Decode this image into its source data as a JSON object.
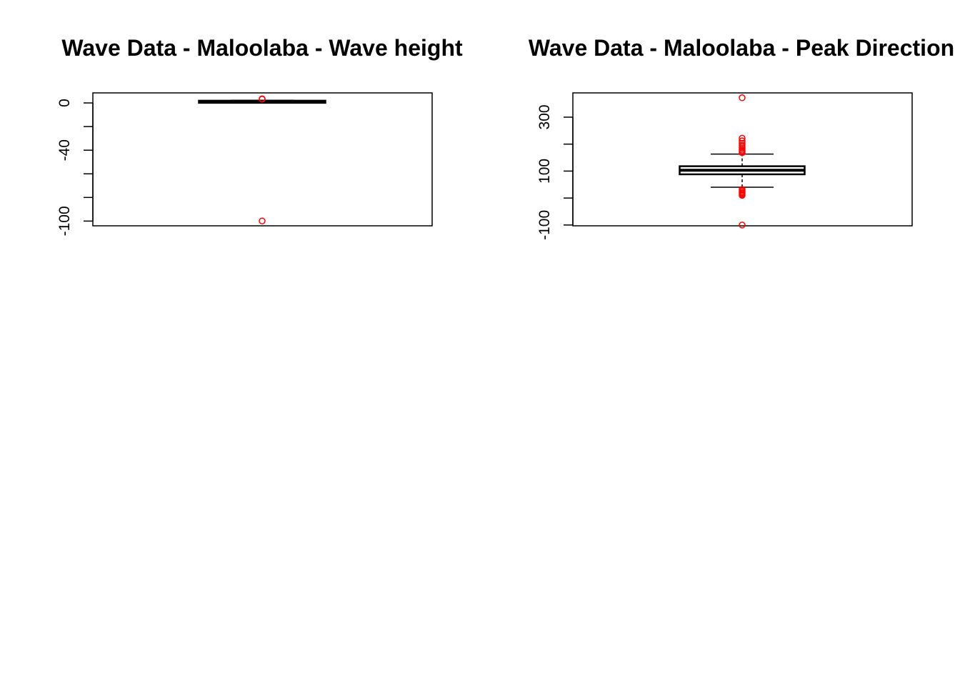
{
  "colors": {
    "outlier": "#ff0000",
    "axis": "#000000",
    "background": "#ffffff"
  },
  "chart_data": [
    {
      "type": "boxplot",
      "title": "Wave Data - Maloolaba - Wave height",
      "xlabel": "",
      "ylabel": "",
      "ylim": [
        -104,
        8.5
      ],
      "yticks": [
        0,
        -20,
        -40,
        -60,
        -80,
        -100
      ],
      "ytick_labels": [
        "0",
        "",
        "-40",
        "",
        "",
        "-100"
      ],
      "grid": false,
      "box": {
        "min": 0.2,
        "q1": 0.7,
        "median": 1.0,
        "q3": 1.3,
        "max": 2.2
      },
      "outliers": [
        3.5,
        3.2,
        -99.9
      ]
    },
    {
      "type": "boxplot",
      "title": "Wave Data - Maloolaba - Peak Direction",
      "xlabel": "",
      "ylabel": "",
      "ylim": [
        -103,
        390
      ],
      "yticks": [
        -100,
        0,
        100,
        200,
        300
      ],
      "ytick_labels": [
        "-100",
        "",
        "100",
        "",
        "300"
      ],
      "grid": false,
      "box": {
        "min": 40,
        "q1": 88,
        "median": 103,
        "q3": 118,
        "max": 163
      },
      "outliers": [
        372,
        222,
        212,
        203,
        196,
        190,
        184,
        178,
        173,
        168,
        32,
        27,
        22,
        18,
        14,
        10,
        -100
      ]
    }
  ]
}
